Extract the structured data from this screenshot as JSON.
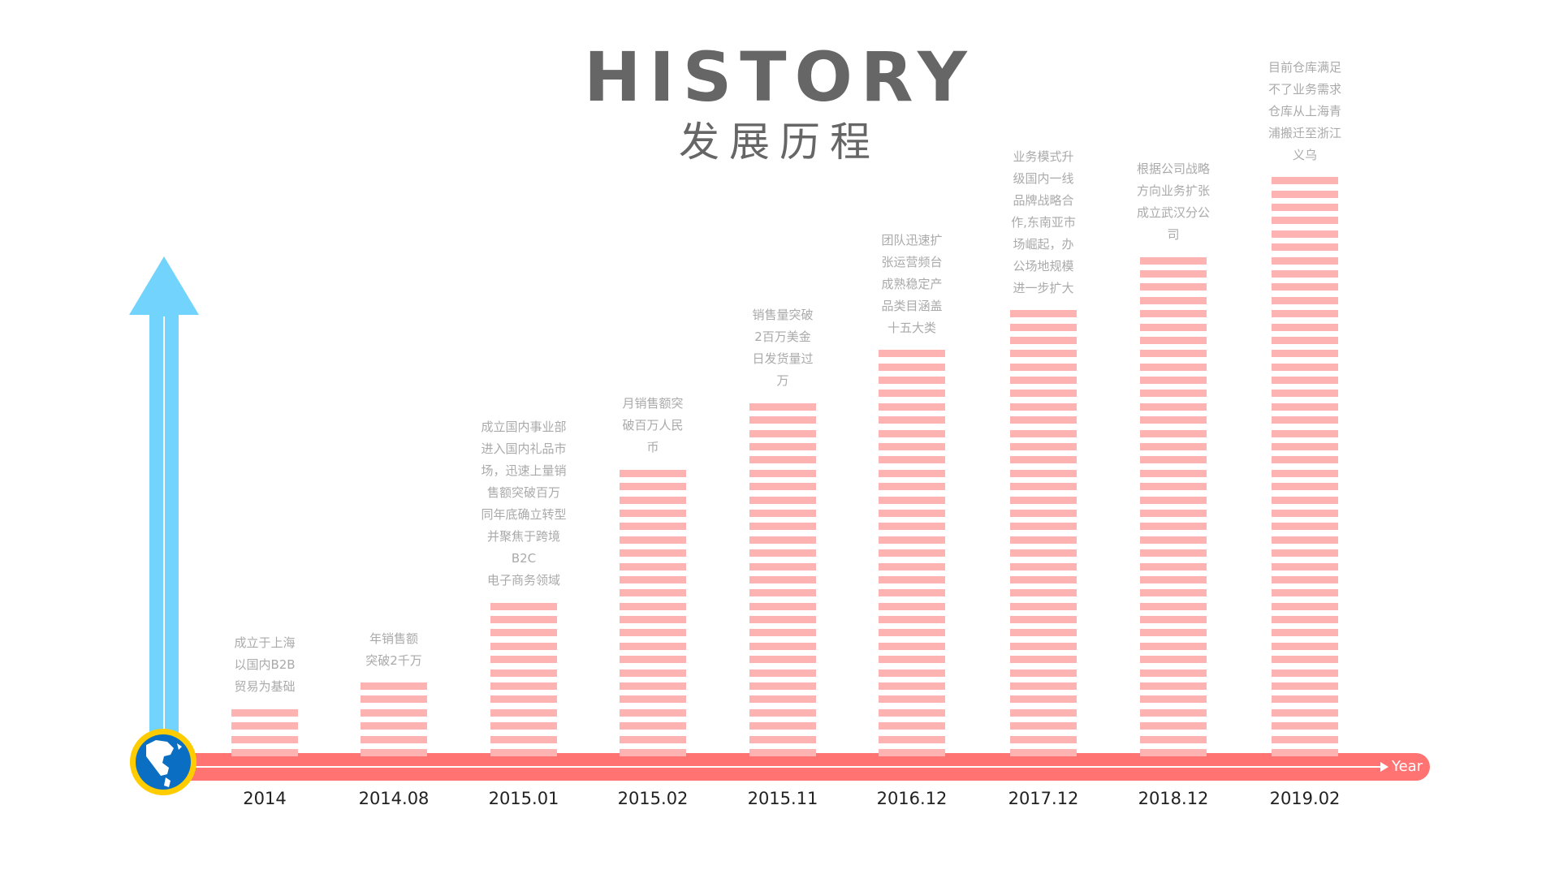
{
  "header": {
    "title": "HISTORY",
    "subtitle": "发展历程"
  },
  "axis": {
    "label": "Year"
  },
  "colors": {
    "bars": "#feb3b3",
    "axis": "#ff7372",
    "up_arrow": "#72d4fc",
    "globe_ring": "#ffcc00",
    "globe": "#0a6fc2",
    "text": "#aaaaaa",
    "title": "#666666"
  },
  "milestones": [
    {
      "year": "2014",
      "stripes": 4,
      "lines": [
        "成立于上海",
        "以国内B2B",
        "贸易为基础"
      ]
    },
    {
      "year": "2014.08",
      "stripes": 6,
      "lines": [
        "年销售额",
        "突破2千万"
      ]
    },
    {
      "year": "2015.01",
      "stripes": 12,
      "lines": [
        "成立国内事业部",
        "进入国内礼品市",
        "场，迅速上量销",
        "售额突破百万",
        "同年底确立转型",
        "并聚焦于跨境B2C",
        "电子商务领域"
      ]
    },
    {
      "year": "2015.02",
      "stripes": 22,
      "lines": [
        "月销售额突",
        "破百万人民",
        "币"
      ]
    },
    {
      "year": "2015.11",
      "stripes": 27,
      "lines": [
        "销售量突破",
        "2百万美金",
        "日发货量过",
        "万"
      ]
    },
    {
      "year": "2016.12",
      "stripes": 31,
      "lines": [
        "团队迅速扩",
        "张运营频台",
        "成熟稳定产",
        "品类目涵盖",
        "十五大类"
      ]
    },
    {
      "year": "2017.12",
      "stripes": 34,
      "lines": [
        "业务模式升",
        "级国内一线",
        "品牌战略合",
        "作,东南亚市",
        "场崛起，办",
        "公场地规模",
        "进一步扩大"
      ]
    },
    {
      "year": "2018.12",
      "stripes": 38,
      "lines": [
        "根据公司战略",
        "方向业务扩张",
        "成立武汉分公",
        "司"
      ]
    },
    {
      "year": "2019.02",
      "stripes": 44,
      "lines": [
        "目前仓库满足",
        "不了业务需求",
        "仓库从上海青",
        "浦搬迁至浙江",
        "义乌"
      ]
    }
  ]
}
